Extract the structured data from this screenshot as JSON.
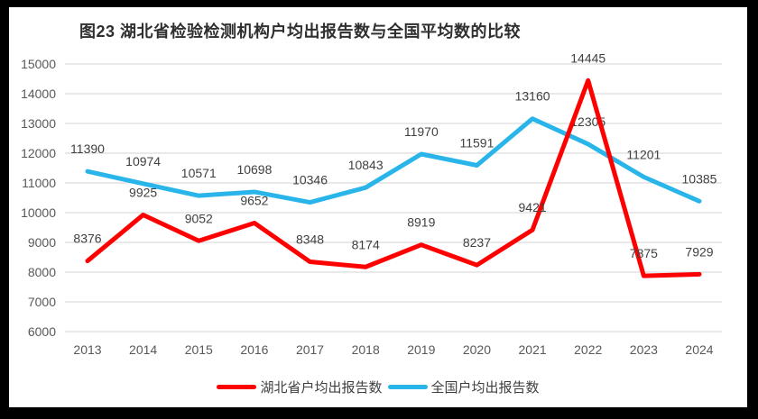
{
  "title": "图23 湖北省检验检测机构户均出报告数与全国平均数的比较",
  "chart_data": {
    "type": "line",
    "title": "图23 湖北省检验检测机构户均出报告数与全国平均数的比较",
    "categories": [
      "2013",
      "2014",
      "2015",
      "2016",
      "2017",
      "2018",
      "2019",
      "2020",
      "2021",
      "2022",
      "2023",
      "2024"
    ],
    "series": [
      {
        "name": "湖北省户均出报告数",
        "color": "#ff0000",
        "values": [
          8376,
          9925,
          9052,
          9652,
          8348,
          8174,
          8919,
          8237,
          9421,
          14445,
          7875,
          7929
        ]
      },
      {
        "name": "全国户均出报告数",
        "color": "#29b5ea",
        "values": [
          11390,
          10974,
          10571,
          10698,
          10346,
          10843,
          11970,
          11591,
          13160,
          12305,
          11201,
          10385
        ]
      }
    ],
    "xlabel": "",
    "ylabel": "",
    "ylim": [
      6000,
      15000
    ],
    "ytick_step": 1000,
    "yticks": [
      "6000",
      "7000",
      "8000",
      "9000",
      "10000",
      "11000",
      "12000",
      "13000",
      "14000",
      "15000"
    ],
    "grid": true,
    "data_labels": true,
    "legend_position": "bottom"
  },
  "legend": {
    "items": [
      {
        "label": "湖北省户均出报告数",
        "color": "#ff0000"
      },
      {
        "label": "全国户均出报告数",
        "color": "#29b5ea"
      }
    ]
  }
}
